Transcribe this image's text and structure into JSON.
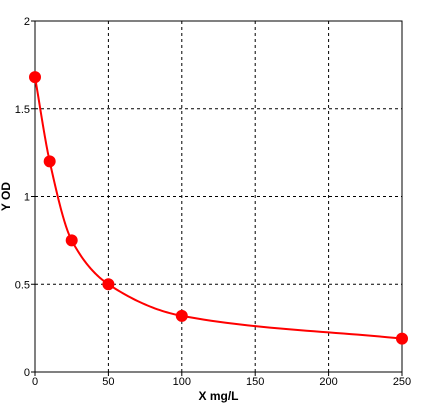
{
  "chart_data": {
    "type": "scatter",
    "title": "",
    "xlabel": "X mg/L",
    "ylabel": "Y OD",
    "xlim": [
      0,
      250
    ],
    "ylim": [
      0,
      2
    ],
    "x_ticks": [
      0,
      50,
      100,
      150,
      200,
      250
    ],
    "y_ticks": [
      0,
      0.5,
      1,
      1.5,
      2
    ],
    "x_tick_labels": [
      "0",
      "50",
      "100",
      "150",
      "200",
      "250"
    ],
    "y_tick_labels": [
      "0",
      "0.5",
      "1",
      "1.5",
      "2"
    ],
    "grid": true,
    "grid_style": "dashed",
    "fit_curve": true,
    "series": [
      {
        "x": [
          0,
          10,
          25,
          50,
          100,
          250
        ],
        "y": [
          1.68,
          1.2,
          0.75,
          0.5,
          0.32,
          0.19
        ]
      }
    ],
    "colors": {
      "series": "#ff0000",
      "grid": "#000000",
      "axis": "#000000",
      "background": "#ffffff"
    }
  }
}
